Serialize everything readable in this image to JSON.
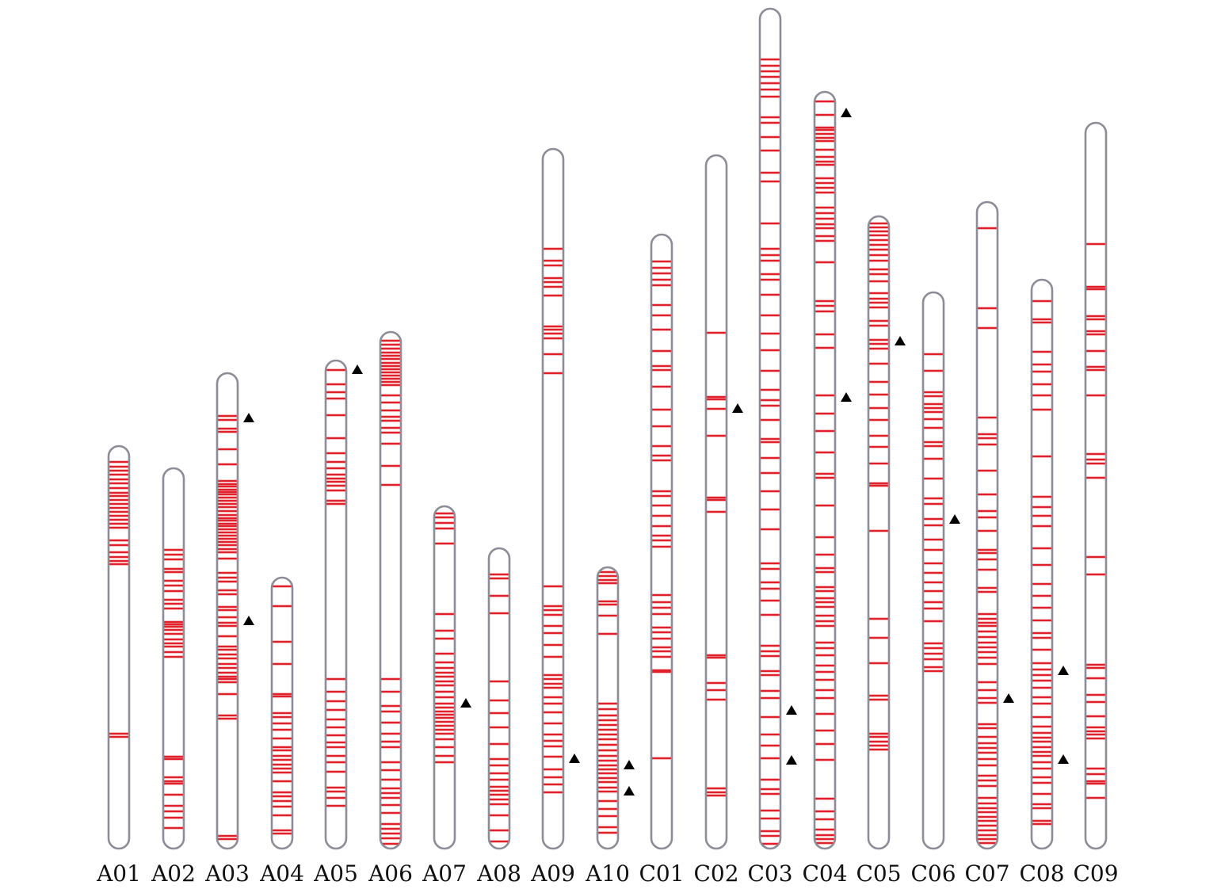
{
  "colors": {
    "outline": "#8d8d98",
    "band": "#e0202a",
    "marker": "#000000",
    "background": "#ffffff"
  },
  "chart_data": {
    "type": "chromosome-map",
    "chromosomes": [
      {
        "name": "A01",
        "markers": [],
        "bands": [
          583,
          589,
          594,
          599,
          605,
          610,
          616,
          622,
          626,
          631,
          636,
          641,
          646,
          651,
          656,
          661,
          666,
          682,
          688,
          697,
          703,
          708,
          712,
          926,
          930
        ]
      },
      {
        "name": "A02",
        "markers": [],
        "bands": [
          694,
          700,
          706,
          718,
          722,
          733,
          739,
          746,
          757,
          762,
          768,
          785,
          788,
          791,
          795,
          800,
          807,
          812,
          816,
          823,
          829,
          955,
          958,
          981,
          986,
          989,
          1003,
          1017,
          1024,
          1032,
          1045
        ]
      },
      {
        "name": "A03",
        "markers": [
          527,
          783
        ],
        "bands": [
          525,
          530,
          541,
          545,
          567,
          586,
          607,
          611,
          614,
          618,
          621,
          624,
          628,
          632,
          636,
          640,
          645,
          650,
          654,
          657,
          661,
          664,
          668,
          672,
          676,
          680,
          684,
          688,
          693,
          697,
          705,
          723,
          729,
          734,
          745,
          750,
          766,
          770,
          779,
          786,
          790,
          803,
          816,
          820,
          826,
          831,
          838,
          843,
          849,
          854,
          857,
          861,
          876,
          903,
          907,
          1055,
          1059
        ]
      },
      {
        "name": "A04",
        "markers": [],
        "bands": [
          740,
          765,
          810,
          838,
          876,
          879,
          900,
          905,
          913,
          921,
          932,
          943,
          947,
          954,
          959,
          965,
          970,
          975,
          986,
          1000,
          1005,
          1011,
          1018,
          1029,
          1048,
          1052
        ]
      },
      {
        "name": "A05",
        "markers": [
          466
        ],
        "bands": [
          467,
          485,
          495,
          503,
          524,
          553,
          572,
          583,
          591,
          599,
          604,
          608,
          613,
          619,
          632,
          636,
          857,
          873,
          885,
          896,
          908,
          918,
          928,
          937,
          943,
          954,
          962,
          974,
          994,
          999,
          1007,
          1017
        ]
      },
      {
        "name": "A06",
        "markers": [],
        "bands": [
          430,
          435,
          440,
          445,
          449,
          453,
          458,
          462,
          466,
          470,
          474,
          478,
          482,
          486,
          499,
          508,
          518,
          526,
          531,
          540,
          546,
          560,
          588,
          612,
          857,
          873,
          891,
          898,
          912,
          926,
          936,
          943,
          962,
          972,
          984,
          995,
          1001,
          1007,
          1016,
          1026,
          1040,
          1046,
          1052,
          1058,
          1065
        ]
      },
      {
        "name": "A07",
        "markers": [
          887
        ],
        "bands": [
          648,
          653,
          660,
          667,
          686,
          775,
          796,
          806,
          825,
          836,
          843,
          849,
          854,
          860,
          865,
          873,
          880,
          888,
          893,
          898,
          902,
          906,
          911,
          916,
          921,
          926,
          933,
          943,
          954,
          962
        ]
      },
      {
        "name": "A08",
        "markers": [],
        "bands": [
          725,
          730,
          752,
          774,
          860,
          884,
          900,
          918,
          939,
          958,
          966,
          976,
          984,
          993,
          998,
          1003,
          1009,
          1015,
          1029,
          1048,
          1062
        ]
      },
      {
        "name": "A09",
        "markers": [
          957
        ],
        "bands": [
          314,
          329,
          335,
          351,
          356,
          362,
          373,
          412,
          416,
          421,
          427,
          447,
          471,
          740,
          765,
          770,
          776,
          790,
          799,
          814,
          829,
          852,
          857,
          863,
          868,
          880,
          888,
          899,
          913,
          927,
          935,
          942,
          955,
          971,
          981,
          990,
          1000
        ]
      },
      {
        "name": "A10",
        "markers": [
          965,
          998
        ],
        "bands": [
          722,
          727,
          732,
          736,
          759,
          763,
          777,
          800,
          888,
          895,
          903,
          909,
          915,
          921,
          927,
          933,
          940,
          947,
          954,
          960,
          966,
          971,
          976,
          982,
          987,
          994,
          999,
          1011,
          1021,
          1030,
          1044,
          1051
        ]
      },
      {
        "name": "C01",
        "markers": [],
        "bands": [
          330,
          338,
          345,
          353,
          360,
          385,
          398,
          416,
          443,
          462,
          467,
          488,
          517,
          538,
          563,
          575,
          581,
          620,
          626,
          638,
          651,
          664,
          676,
          682,
          690,
          751,
          760,
          767,
          775,
          792,
          798,
          806,
          817,
          822,
          829,
          846,
          848,
          957
        ]
      },
      {
        "name": "C02",
        "markers": [
          515
        ],
        "bands": [
          420,
          501,
          504,
          516,
          550,
          628,
          631,
          646,
          827,
          830,
          862,
          871,
          883,
          995,
          1000,
          1004
        ]
      },
      {
        "name": "C03",
        "markers": [
          896,
          959
        ],
        "bands": [
          75,
          83,
          90,
          97,
          105,
          113,
          122,
          148,
          155,
          173,
          190,
          218,
          229,
          282,
          314,
          322,
          329,
          346,
          353,
          372,
          398,
          421,
          442,
          468,
          492,
          505,
          512,
          530,
          554,
          558,
          578,
          597,
          620,
          643,
          668,
          711,
          718,
          735,
          743,
          758,
          776,
          815,
          822,
          828,
          847,
          852,
          872,
          881,
          905,
          927,
          941,
          957,
          984,
          996,
          1002,
          1023,
          1033,
          1049,
          1055,
          1065
        ]
      },
      {
        "name": "C04",
        "markers": [
          142,
          501
        ],
        "bands": [
          128,
          145,
          161,
          164,
          169,
          174,
          178,
          189,
          198,
          204,
          208,
          225,
          231,
          237,
          243,
          262,
          269,
          276,
          283,
          288,
          298,
          304,
          331,
          380,
          386,
          393,
          422,
          439,
          499,
          522,
          544,
          571,
          598,
          603,
          638,
          678,
          700,
          717,
          722,
          741,
          746,
          755,
          760,
          766,
          777,
          784,
          790,
          811,
          818,
          827,
          840,
          848,
          858,
          871,
          881,
          901,
          922,
          939,
          959,
          1008,
          1024,
          1034,
          1047,
          1054,
          1059,
          1064
        ]
      },
      {
        "name": "C05",
        "markers": [
          430
        ],
        "bands": [
          282,
          287,
          292,
          297,
          303,
          309,
          315,
          322,
          329,
          340,
          346,
          355,
          370,
          377,
          382,
          388,
          405,
          411,
          429,
          434,
          440,
          459,
          482,
          498,
          515,
          530,
          550,
          564,
          585,
          610,
          613,
          670,
          781,
          805,
          837,
          878,
          883,
          926,
          930,
          936,
          941,
          946
        ]
      },
      {
        "name": "C06",
        "markers": [
          655
        ],
        "bands": [
          447,
          468,
          495,
          500,
          510,
          515,
          520,
          529,
          540,
          558,
          563,
          579,
          604,
          629,
          636,
          655,
          663,
          681,
          694,
          711,
          723,
          735,
          746,
          760,
          768,
          784,
          812,
          818,
          825,
          832,
          842,
          847
        ]
      },
      {
        "name": "C07",
        "markers": [
          881
        ],
        "bands": [
          288,
          389,
          414,
          527,
          548,
          553,
          561,
          594,
          624,
          645,
          653,
          670,
          694,
          698,
          706,
          719,
          742,
          747,
          775,
          781,
          786,
          790,
          797,
          804,
          811,
          817,
          823,
          830,
          838,
          861,
          871,
          881,
          887,
          914,
          919,
          930,
          938,
          944,
          950,
          958,
          966,
          979,
          985,
          992,
          1007,
          1014,
          1020,
          1025,
          1031,
          1036,
          1042,
          1048,
          1054,
          1059,
          1064
        ]
      },
      {
        "name": "C08",
        "markers": [
          846,
          958
        ],
        "bands": [
          380,
          403,
          407,
          444,
          460,
          469,
          485,
          499,
          517,
          576,
          627,
          640,
          651,
          664,
          692,
          713,
          737,
          752,
          767,
          783,
          799,
          805,
          820,
          837,
          845,
          852,
          859,
          868,
          880,
          888,
          905,
          917,
          925,
          931,
          936,
          943,
          949,
          954,
          962,
          970,
          981,
          988,
          1002,
          1015,
          1020,
          1036,
          1040
        ]
      },
      {
        "name": "C09",
        "markers": [],
        "bands": [
          308,
          362,
          365,
          399,
          403,
          418,
          422,
          443,
          463,
          467,
          499,
          573,
          580,
          585,
          603,
          703,
          725,
          839,
          843,
          856,
          877,
          886,
          904,
          918,
          923,
          927,
          932,
          970,
          977,
          986,
          989,
          1007
        ]
      }
    ]
  }
}
